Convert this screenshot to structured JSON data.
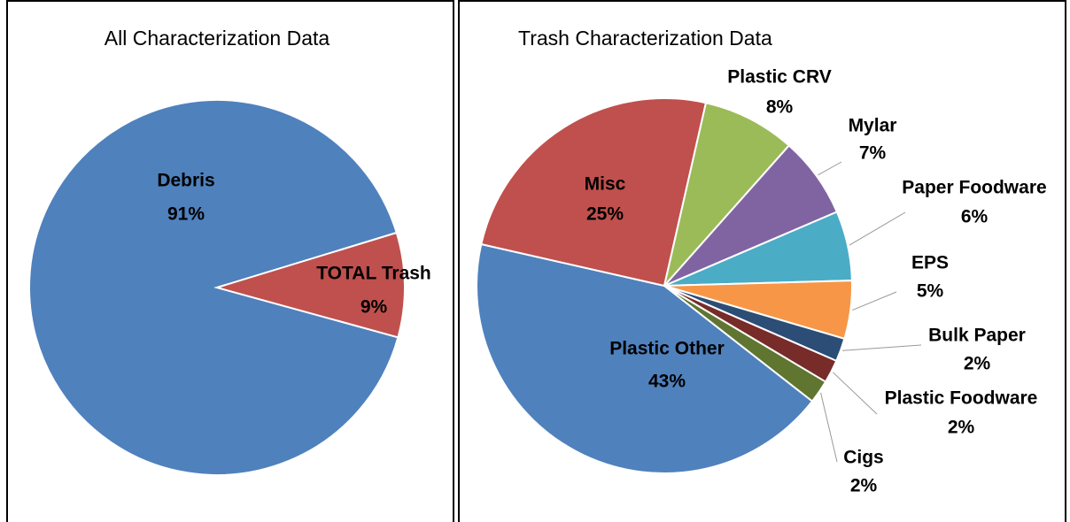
{
  "chart_data": [
    {
      "type": "pie",
      "title": "All Characterization Data",
      "categories": [
        "Debris",
        "TOTAL Trash"
      ],
      "values": [
        91,
        9
      ],
      "value_labels": [
        "91%",
        "9%"
      ],
      "colors": [
        "#4f81bd",
        "#c0504d"
      ]
    },
    {
      "type": "pie",
      "title": "Trash Characterization Data",
      "categories": [
        "Plastic Other",
        "Misc",
        "Plastic CRV",
        "Mylar",
        "Paper Foodware",
        "EPS",
        "Bulk Paper",
        "Plastic Foodware",
        "Cigs"
      ],
      "values": [
        43,
        25,
        8,
        7,
        6,
        5,
        2,
        2,
        2
      ],
      "value_labels": [
        "43%",
        "25%",
        "8%",
        "7%",
        "6%",
        "5%",
        "2%",
        "2%",
        "2%"
      ],
      "colors": [
        "#4f81bd",
        "#c0504d",
        "#9bbb59",
        "#8064a2",
        "#4bacc6",
        "#f79646",
        "#2c4d75",
        "#772c2a",
        "#5f7530"
      ]
    }
  ]
}
